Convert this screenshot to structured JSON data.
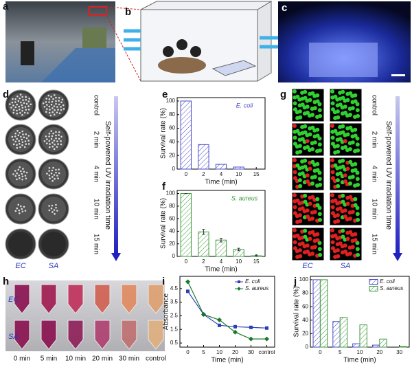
{
  "panels": {
    "a": "a",
    "b": "b",
    "c": "c",
    "d": "d",
    "e": "e",
    "f": "f",
    "g": "g",
    "h": "h",
    "i": "i",
    "j": "j"
  },
  "d": {
    "rows": [
      "control",
      "2 min",
      "4 min",
      "10 min",
      "15 min"
    ],
    "arrow": "Self-powered UV irradiation time",
    "cols": [
      "EC",
      "SA"
    ]
  },
  "g": {
    "rows": [
      "control",
      "2 min",
      "4 min",
      "10 min",
      "15 min"
    ],
    "arrow": "Self-powered UV irradiation time",
    "cols": [
      "EC",
      "SA"
    ]
  },
  "h": {
    "rows": [
      "EC",
      "SA"
    ],
    "times": [
      "0 min",
      "5 min",
      "10 min",
      "20 min",
      "30 min",
      "control"
    ]
  },
  "chart_data": [
    {
      "type": "bar",
      "annotation": "E. coli",
      "x_label": "Time (min)",
      "y_label": "Survival rate (%)",
      "categories": [
        0,
        2,
        4,
        10,
        15
      ],
      "values": [
        100,
        36,
        7,
        3,
        0
      ],
      "color": "#4a4ac8",
      "ylim": [
        0,
        105
      ],
      "yticks": [
        0,
        20,
        40,
        60,
        80,
        100
      ]
    },
    {
      "type": "bar",
      "annotation": "S. aureus",
      "x_label": "Time (min)",
      "y_label": "Survival rate (%)",
      "categories": [
        0,
        2,
        4,
        10,
        15
      ],
      "values": [
        100,
        39,
        26,
        11,
        1
      ],
      "errors": [
        0,
        4,
        3,
        2,
        1
      ],
      "color": "#3c9a3c",
      "ylim": [
        0,
        105
      ],
      "yticks": [
        0,
        20,
        40,
        60,
        80,
        100
      ]
    },
    {
      "type": "line",
      "x_label": "Time (min)",
      "y_label": "Absorbance",
      "categories": [
        0,
        5,
        10,
        20,
        30,
        "control"
      ],
      "series": [
        {
          "name": "E. coli",
          "color": "#2b3fb5",
          "marker": "square",
          "values": [
            4.3,
            2.6,
            1.8,
            1.7,
            1.65,
            1.6
          ]
        },
        {
          "name": "S. aureus",
          "color": "#1a7a2a",
          "marker": "diamond",
          "values": [
            5.0,
            2.6,
            2.2,
            1.3,
            0.8,
            0.8
          ]
        }
      ],
      "ylim": [
        0.2,
        5.4
      ],
      "yticks": [
        0.5,
        1.5,
        2.5,
        3.5,
        4.5
      ],
      "legend": "top-right"
    },
    {
      "type": "grouped-bar",
      "x_label": "Time (min)",
      "y_label": "Survival rate (%)",
      "categories": [
        0,
        5,
        10,
        20,
        30
      ],
      "series": [
        {
          "name": "E. coli",
          "color": "#4a4ac8",
          "values": [
            100,
            38,
            5,
            3,
            0
          ]
        },
        {
          "name": "S. aureus",
          "color": "#3c9a3c",
          "values": [
            100,
            44,
            33,
            12,
            1
          ]
        }
      ],
      "ylim": [
        0,
        105
      ],
      "yticks": [
        0,
        20,
        40,
        60,
        80,
        100
      ],
      "legend": "top-right"
    }
  ]
}
